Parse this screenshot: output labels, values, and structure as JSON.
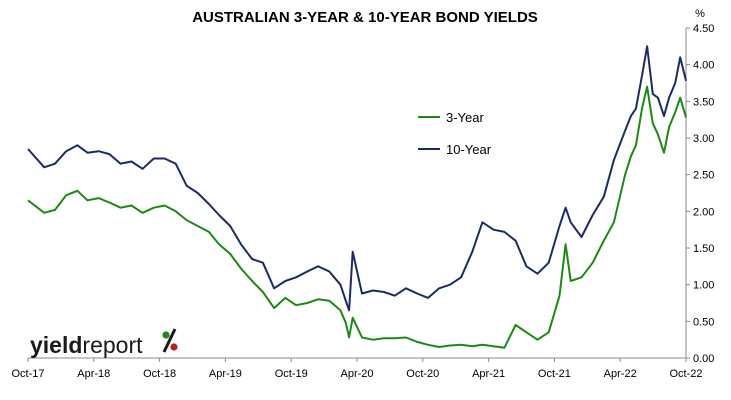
{
  "chart_data": {
    "type": "line",
    "title": "AUSTRALIAN 3-YEAR & 10-YEAR BOND YIELDS",
    "unit": "%",
    "x_ticks": [
      "Oct-17",
      "Apr-18",
      "Oct-18",
      "Apr-19",
      "Oct-19",
      "Apr-20",
      "Oct-20",
      "Apr-21",
      "Oct-21",
      "Apr-22",
      "Oct-22"
    ],
    "y_ticks": [
      "0.00",
      "0.50",
      "1.00",
      "1.50",
      "2.00",
      "2.50",
      "3.00",
      "3.50",
      "4.00",
      "4.50"
    ],
    "ylim": [
      0,
      4.5
    ],
    "xlim": [
      "2017-10",
      "2022-10"
    ],
    "legend_position": "center-right",
    "grid": false,
    "series": [
      {
        "name": "3-Year",
        "color": "#1a8a12",
        "points": [
          [
            "2017-10-01",
            2.15
          ],
          [
            "2017-11-15",
            1.98
          ],
          [
            "2017-12-15",
            2.02
          ],
          [
            "2018-01-15",
            2.22
          ],
          [
            "2018-02-15",
            2.28
          ],
          [
            "2018-03-15",
            2.15
          ],
          [
            "2018-04-15",
            2.18
          ],
          [
            "2018-05-15",
            2.12
          ],
          [
            "2018-06-15",
            2.05
          ],
          [
            "2018-07-15",
            2.08
          ],
          [
            "2018-08-15",
            1.98
          ],
          [
            "2018-09-15",
            2.05
          ],
          [
            "2018-10-15",
            2.08
          ],
          [
            "2018-11-15",
            2.0
          ],
          [
            "2018-12-15",
            1.88
          ],
          [
            "2019-01-15",
            1.8
          ],
          [
            "2019-02-15",
            1.72
          ],
          [
            "2019-03-15",
            1.55
          ],
          [
            "2019-04-15",
            1.42
          ],
          [
            "2019-05-15",
            1.22
          ],
          [
            "2019-06-15",
            1.05
          ],
          [
            "2019-07-15",
            0.9
          ],
          [
            "2019-08-15",
            0.68
          ],
          [
            "2019-09-15",
            0.82
          ],
          [
            "2019-10-15",
            0.72
          ],
          [
            "2019-11-15",
            0.75
          ],
          [
            "2019-12-15",
            0.8
          ],
          [
            "2020-01-15",
            0.78
          ],
          [
            "2020-02-15",
            0.65
          ],
          [
            "2020-03-01",
            0.48
          ],
          [
            "2020-03-10",
            0.28
          ],
          [
            "2020-03-20",
            0.55
          ],
          [
            "2020-04-15",
            0.28
          ],
          [
            "2020-05-15",
            0.25
          ],
          [
            "2020-06-15",
            0.27
          ],
          [
            "2020-07-15",
            0.27
          ],
          [
            "2020-08-15",
            0.28
          ],
          [
            "2020-09-15",
            0.22
          ],
          [
            "2020-10-15",
            0.18
          ],
          [
            "2020-11-15",
            0.15
          ],
          [
            "2020-12-15",
            0.17
          ],
          [
            "2021-01-15",
            0.18
          ],
          [
            "2021-02-15",
            0.16
          ],
          [
            "2021-03-15",
            0.18
          ],
          [
            "2021-04-15",
            0.16
          ],
          [
            "2021-05-15",
            0.14
          ],
          [
            "2021-06-15",
            0.45
          ],
          [
            "2021-07-15",
            0.35
          ],
          [
            "2021-08-15",
            0.25
          ],
          [
            "2021-09-15",
            0.35
          ],
          [
            "2021-10-15",
            0.85
          ],
          [
            "2021-11-01",
            1.55
          ],
          [
            "2021-11-15",
            1.05
          ],
          [
            "2021-12-15",
            1.1
          ],
          [
            "2022-01-15",
            1.3
          ],
          [
            "2022-02-15",
            1.6
          ],
          [
            "2022-03-15",
            1.85
          ],
          [
            "2022-04-15",
            2.5
          ],
          [
            "2022-05-01",
            2.75
          ],
          [
            "2022-05-15",
            2.9
          ],
          [
            "2022-06-01",
            3.4
          ],
          [
            "2022-06-15",
            3.7
          ],
          [
            "2022-07-01",
            3.2
          ],
          [
            "2022-07-15",
            3.05
          ],
          [
            "2022-08-01",
            2.8
          ],
          [
            "2022-08-15",
            3.15
          ],
          [
            "2022-09-01",
            3.35
          ],
          [
            "2022-09-15",
            3.55
          ],
          [
            "2022-10-01",
            3.28
          ]
        ]
      },
      {
        "name": "10-Year",
        "color": "#1b2a6b",
        "points": [
          [
            "2017-10-01",
            2.85
          ],
          [
            "2017-11-15",
            2.6
          ],
          [
            "2017-12-15",
            2.65
          ],
          [
            "2018-01-15",
            2.82
          ],
          [
            "2018-02-15",
            2.9
          ],
          [
            "2018-03-15",
            2.8
          ],
          [
            "2018-04-15",
            2.82
          ],
          [
            "2018-05-15",
            2.78
          ],
          [
            "2018-06-15",
            2.65
          ],
          [
            "2018-07-15",
            2.68
          ],
          [
            "2018-08-15",
            2.58
          ],
          [
            "2018-09-15",
            2.72
          ],
          [
            "2018-10-15",
            2.72
          ],
          [
            "2018-11-15",
            2.65
          ],
          [
            "2018-12-15",
            2.35
          ],
          [
            "2019-01-15",
            2.25
          ],
          [
            "2019-02-15",
            2.1
          ],
          [
            "2019-03-15",
            1.95
          ],
          [
            "2019-04-15",
            1.8
          ],
          [
            "2019-05-15",
            1.55
          ],
          [
            "2019-06-15",
            1.35
          ],
          [
            "2019-07-15",
            1.3
          ],
          [
            "2019-08-15",
            0.95
          ],
          [
            "2019-09-15",
            1.05
          ],
          [
            "2019-10-15",
            1.1
          ],
          [
            "2019-11-15",
            1.18
          ],
          [
            "2019-12-15",
            1.25
          ],
          [
            "2020-01-15",
            1.18
          ],
          [
            "2020-02-15",
            1.0
          ],
          [
            "2020-03-01",
            0.78
          ],
          [
            "2020-03-10",
            0.65
          ],
          [
            "2020-03-20",
            1.45
          ],
          [
            "2020-04-15",
            0.88
          ],
          [
            "2020-05-15",
            0.92
          ],
          [
            "2020-06-15",
            0.9
          ],
          [
            "2020-07-15",
            0.85
          ],
          [
            "2020-08-15",
            0.95
          ],
          [
            "2020-09-15",
            0.88
          ],
          [
            "2020-10-15",
            0.82
          ],
          [
            "2020-11-15",
            0.95
          ],
          [
            "2020-12-15",
            1.0
          ],
          [
            "2021-01-15",
            1.1
          ],
          [
            "2021-02-15",
            1.45
          ],
          [
            "2021-03-15",
            1.85
          ],
          [
            "2021-04-15",
            1.75
          ],
          [
            "2021-05-15",
            1.72
          ],
          [
            "2021-06-15",
            1.6
          ],
          [
            "2021-07-15",
            1.25
          ],
          [
            "2021-08-15",
            1.15
          ],
          [
            "2021-09-15",
            1.3
          ],
          [
            "2021-10-15",
            1.8
          ],
          [
            "2021-11-01",
            2.05
          ],
          [
            "2021-11-15",
            1.85
          ],
          [
            "2021-12-15",
            1.65
          ],
          [
            "2022-01-15",
            1.95
          ],
          [
            "2022-02-15",
            2.2
          ],
          [
            "2022-03-15",
            2.7
          ],
          [
            "2022-04-15",
            3.1
          ],
          [
            "2022-05-01",
            3.3
          ],
          [
            "2022-05-15",
            3.4
          ],
          [
            "2022-06-01",
            3.85
          ],
          [
            "2022-06-15",
            4.25
          ],
          [
            "2022-07-01",
            3.6
          ],
          [
            "2022-07-15",
            3.55
          ],
          [
            "2022-08-01",
            3.3
          ],
          [
            "2022-08-15",
            3.55
          ],
          [
            "2022-09-01",
            3.75
          ],
          [
            "2022-09-15",
            4.1
          ],
          [
            "2022-10-01",
            3.78
          ]
        ]
      }
    ]
  },
  "logo": {
    "part1": "yield",
    "part2": "report",
    "mark": "%",
    "mark_colors": [
      "#1a8a12",
      "#c41e1e"
    ]
  }
}
